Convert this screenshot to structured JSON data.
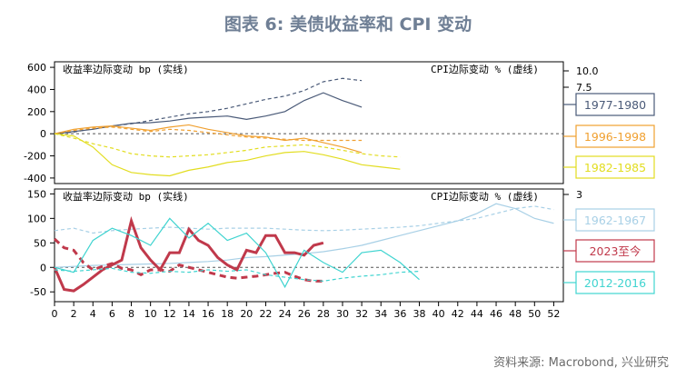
{
  "title": "图表 6:  美债收益率和 CPI 变动",
  "source": "资料来源:  Macrobond, 兴业研究",
  "chart_data": [
    {
      "type": "line",
      "left_annotation": "收益率边际变动 bp (实线)",
      "right_annotation": "CPI边际变动 % (虚线)",
      "left_axis": {
        "ticks": [
          600,
          400,
          200,
          0,
          -200,
          -400
        ],
        "ylim": [
          -450,
          650
        ]
      },
      "right_axis": {
        "ticks": [
          "10.0",
          "7.5"
        ]
      },
      "xlim": [
        0,
        53
      ],
      "series": [
        {
          "name": "1977-1980",
          "color": "#4a5a78",
          "solid_x": [
            0,
            2,
            4,
            6,
            8,
            10,
            12,
            14,
            16,
            18,
            20,
            22,
            24,
            26,
            28,
            30,
            32
          ],
          "solid_y": [
            0,
            20,
            40,
            70,
            95,
            100,
            115,
            140,
            150,
            160,
            130,
            160,
            200,
            300,
            370,
            300,
            240
          ],
          "dashed_x": [
            0,
            2,
            4,
            6,
            8,
            10,
            12,
            14,
            16,
            18,
            20,
            22,
            24,
            26,
            28,
            30,
            32
          ],
          "dashed_y": [
            0,
            15,
            45,
            70,
            90,
            120,
            150,
            180,
            200,
            230,
            270,
            310,
            340,
            390,
            470,
            500,
            480
          ]
        },
        {
          "name": "1996-1998",
          "color": "#f0a030",
          "solid_x": [
            0,
            2,
            4,
            6,
            8,
            10,
            12,
            14,
            16,
            18,
            20,
            22,
            24,
            26,
            28,
            30,
            32
          ],
          "solid_y": [
            0,
            40,
            60,
            70,
            50,
            30,
            60,
            80,
            40,
            10,
            -20,
            -30,
            -60,
            -40,
            -80,
            -120,
            -170
          ],
          "dashed_x": [
            0,
            2,
            4,
            6,
            8,
            10,
            12,
            14,
            16,
            18,
            20,
            22,
            24,
            26,
            28,
            30,
            32
          ],
          "dashed_y": [
            0,
            30,
            50,
            60,
            40,
            20,
            40,
            30,
            10,
            -10,
            -30,
            -40,
            -50,
            -60,
            -60,
            -60,
            -60
          ]
        },
        {
          "name": "1982-1985",
          "color": "#e2dd20",
          "solid_x": [
            0,
            2,
            4,
            6,
            8,
            10,
            12,
            14,
            16,
            18,
            20,
            22,
            24,
            26,
            28,
            30,
            32,
            34,
            36
          ],
          "solid_y": [
            0,
            -20,
            -120,
            -280,
            -350,
            -370,
            -380,
            -330,
            -300,
            -260,
            -240,
            -200,
            -170,
            -160,
            -190,
            -230,
            -280,
            -300,
            -320
          ],
          "dashed_x": [
            0,
            2,
            4,
            6,
            8,
            10,
            12,
            14,
            16,
            18,
            20,
            22,
            24,
            26,
            28,
            30,
            32,
            34,
            36
          ],
          "dashed_y": [
            0,
            -40,
            -90,
            -130,
            -180,
            -200,
            -210,
            -200,
            -190,
            -170,
            -150,
            -120,
            -110,
            -100,
            -120,
            -150,
            -180,
            -200,
            -210
          ]
        }
      ],
      "zero_line": 0
    },
    {
      "type": "line",
      "left_annotation": "收益率边际变动 bp (实线)",
      "right_annotation": "CPI边际变动 % (虚线)",
      "left_axis": {
        "ticks": [
          150,
          100,
          50,
          0,
          -50
        ],
        "ylim": [
          -70,
          160
        ]
      },
      "right_axis": {
        "ticks": [
          "3"
        ]
      },
      "x_ticks": [
        0,
        2,
        4,
        6,
        8,
        10,
        12,
        14,
        16,
        18,
        20,
        22,
        24,
        26,
        28,
        30,
        32,
        34,
        36,
        38,
        40,
        42,
        44,
        46,
        48,
        50,
        52
      ],
      "xlim": [
        0,
        53
      ],
      "series": [
        {
          "name": "1962-1967",
          "color": "#a8d0e6",
          "solid_x": [
            0,
            2,
            4,
            6,
            8,
            10,
            12,
            14,
            16,
            18,
            20,
            22,
            24,
            26,
            28,
            30,
            32,
            34,
            36,
            38,
            40,
            42,
            44,
            46,
            48,
            50,
            52
          ],
          "solid_y": [
            0,
            2,
            4,
            5,
            6,
            7,
            8,
            10,
            12,
            15,
            20,
            22,
            25,
            28,
            32,
            38,
            45,
            55,
            65,
            75,
            85,
            95,
            110,
            130,
            120,
            100,
            90
          ],
          "dashed_x": [
            0,
            2,
            4,
            6,
            8,
            10,
            12,
            14,
            16,
            18,
            20,
            22,
            24,
            26,
            28,
            30,
            32,
            34,
            36,
            38,
            40,
            42,
            44,
            46,
            48,
            50,
            52
          ],
          "dashed_y": [
            75,
            80,
            70,
            75,
            78,
            80,
            82,
            80,
            78,
            80,
            80,
            80,
            78,
            76,
            75,
            76,
            78,
            80,
            82,
            85,
            90,
            95,
            100,
            110,
            120,
            125,
            118
          ]
        },
        {
          "name": "2023至今",
          "color": "#c0394b",
          "solid_x": [
            0,
            1,
            2,
            3,
            4,
            5,
            6,
            7,
            8,
            9,
            10,
            11,
            12,
            13,
            14,
            15,
            16,
            17,
            18,
            19,
            20,
            21,
            22,
            23,
            24,
            25,
            26,
            27,
            28
          ],
          "solid_y": [
            0,
            -45,
            -48,
            -35,
            -20,
            -5,
            5,
            15,
            95,
            40,
            15,
            -5,
            30,
            30,
            78,
            55,
            45,
            20,
            5,
            -5,
            35,
            30,
            65,
            65,
            30,
            30,
            25,
            45,
            50
          ],
          "dashed_x": [
            0,
            1,
            2,
            3,
            4,
            5,
            6,
            7,
            8,
            9,
            10,
            11,
            12,
            13,
            14,
            15,
            16,
            17,
            18,
            19,
            20,
            21,
            22,
            23,
            24,
            25,
            26,
            27,
            28
          ],
          "dashed_y": [
            58,
            40,
            35,
            10,
            -5,
            2,
            8,
            -2,
            -5,
            -15,
            -5,
            -5,
            -8,
            5,
            0,
            -5,
            -10,
            -15,
            -20,
            -22,
            -20,
            -18,
            -15,
            -12,
            -10,
            -18,
            -25,
            -28,
            -28
          ]
        },
        {
          "name": "2012-2016",
          "color": "#40d4d0",
          "solid_x": [
            0,
            2,
            4,
            6,
            8,
            10,
            12,
            14,
            16,
            18,
            20,
            22,
            24,
            26,
            28,
            30,
            32,
            34,
            36,
            38
          ],
          "solid_y": [
            0,
            -10,
            55,
            80,
            65,
            45,
            100,
            60,
            90,
            55,
            70,
            30,
            -40,
            35,
            10,
            -10,
            30,
            35,
            10,
            -25
          ],
          "dashed_x": [
            0,
            2,
            4,
            6,
            8,
            10,
            12,
            14,
            16,
            18,
            20,
            22,
            24,
            26,
            28,
            30,
            32,
            34,
            36,
            38
          ],
          "dashed_y": [
            -5,
            -8,
            -5,
            -2,
            -10,
            -12,
            -8,
            -10,
            -5,
            -8,
            -5,
            -15,
            -20,
            -25,
            -28,
            -22,
            -18,
            -15,
            -10,
            -8
          ]
        }
      ],
      "zero_line": 0
    }
  ]
}
